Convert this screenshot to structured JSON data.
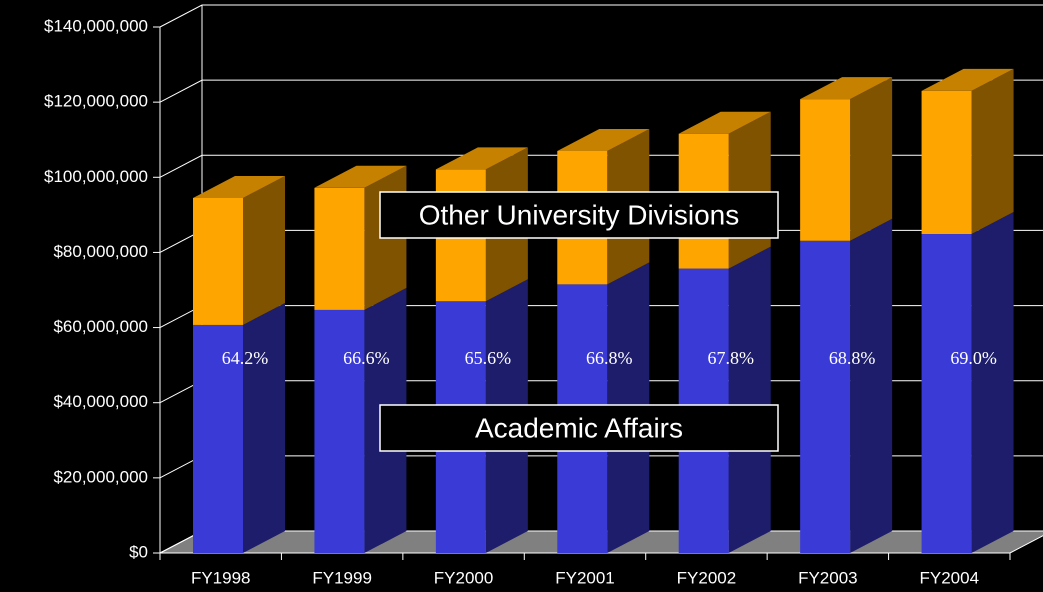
{
  "chart_data": {
    "type": "bar3d_stacked",
    "categories": [
      "FY1998",
      "FY1999",
      "FY2000",
      "FY2001",
      "FY2002",
      "FY2003",
      "FY2004"
    ],
    "series": [
      {
        "name": "Academic Affairs",
        "color": "#3a3ad6",
        "values": [
          60700000,
          64700000,
          67000000,
          71500000,
          75700000,
          83100000,
          84900000
        ]
      },
      {
        "name": "Other University Divisions",
        "color": "#ffa500",
        "values": [
          33800000,
          32500000,
          35100000,
          35500000,
          35900000,
          37700000,
          38100000
        ]
      }
    ],
    "annotations": [
      "64.2%",
      "66.6%",
      "65.6%",
      "66.8%",
      "67.8%",
      "68.8%",
      "69.0%"
    ],
    "ylim": [
      0,
      140000000
    ],
    "yticks": [
      {
        "value": 0,
        "label": "$0"
      },
      {
        "value": 20000000,
        "label": "$20,000,000"
      },
      {
        "value": 40000000,
        "label": "$40,000,000"
      },
      {
        "value": 60000000,
        "label": "$60,000,000"
      },
      {
        "value": 80000000,
        "label": "$80,000,000"
      },
      {
        "value": 100000000,
        "label": "$100,000,000"
      },
      {
        "value": 120000000,
        "label": "$120,000,000"
      },
      {
        "value": 140000000,
        "label": "$140,000,000"
      }
    ],
    "grid": true
  }
}
